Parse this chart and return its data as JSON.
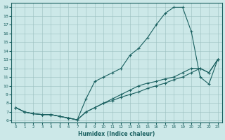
{
  "xlabel": "Humidex (Indice chaleur)",
  "xlim": [
    -0.5,
    23.5
  ],
  "ylim": [
    5.8,
    19.5
  ],
  "xticks": [
    0,
    1,
    2,
    3,
    4,
    5,
    6,
    7,
    8,
    9,
    10,
    11,
    12,
    13,
    14,
    15,
    16,
    17,
    18,
    19,
    20,
    21,
    22,
    23
  ],
  "yticks": [
    6,
    7,
    8,
    9,
    10,
    11,
    12,
    13,
    14,
    15,
    16,
    17,
    18,
    19
  ],
  "bg_color": "#cce8e8",
  "line_color": "#1a6060",
  "grid_color": "#9bbfbf",
  "lines": [
    {
      "x": [
        0,
        1,
        2,
        3,
        4,
        5,
        6,
        7,
        8,
        9,
        10,
        11,
        12,
        13,
        14,
        15,
        16,
        17,
        18,
        19,
        20,
        21,
        22,
        23
      ],
      "y": [
        7.5,
        7.0,
        6.8,
        6.7,
        6.7,
        6.5,
        6.3,
        6.1,
        7.0,
        7.5,
        8.0,
        8.3,
        8.7,
        9.0,
        9.3,
        9.7,
        10.0,
        10.3,
        10.7,
        11.0,
        11.5,
        12.0,
        11.5,
        13.0
      ]
    },
    {
      "x": [
        0,
        1,
        2,
        3,
        4,
        5,
        6,
        7,
        8,
        9,
        10,
        11,
        12,
        13,
        14,
        15,
        16,
        17,
        18,
        19,
        20,
        21,
        22,
        23
      ],
      "y": [
        7.5,
        7.0,
        6.8,
        6.7,
        6.7,
        6.5,
        6.3,
        6.1,
        8.5,
        10.5,
        11.0,
        11.5,
        12.0,
        13.5,
        14.3,
        15.5,
        17.0,
        18.3,
        19.0,
        19.0,
        16.2,
        11.0,
        10.2,
        13.0
      ]
    },
    {
      "x": [
        0,
        1,
        2,
        3,
        4,
        5,
        6,
        7,
        8,
        9,
        10,
        11,
        12,
        13,
        14,
        15,
        16,
        17,
        18,
        19,
        20,
        21,
        22,
        23
      ],
      "y": [
        7.5,
        7.0,
        6.8,
        6.7,
        6.7,
        6.5,
        6.3,
        6.1,
        7.0,
        7.5,
        8.0,
        8.5,
        9.0,
        9.5,
        10.0,
        10.3,
        10.5,
        10.8,
        11.0,
        11.5,
        12.0,
        12.0,
        11.5,
        13.0
      ]
    }
  ]
}
